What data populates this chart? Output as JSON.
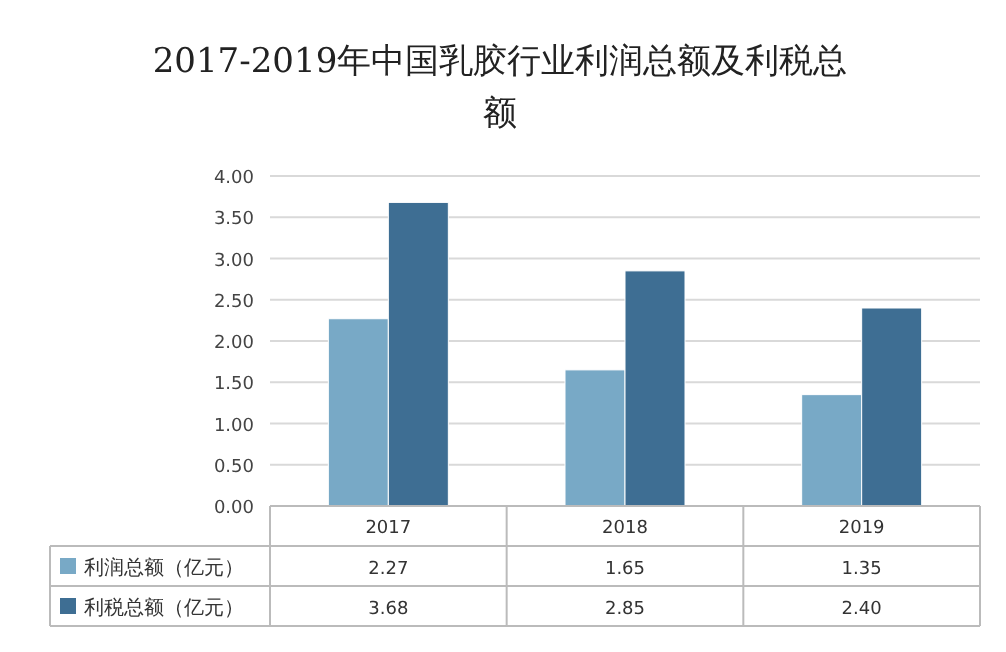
{
  "chart_data": {
    "type": "bar",
    "title": "2017-2019年中国乳胶行业利润总额及利税总额",
    "categories": [
      "2017",
      "2018",
      "2019"
    ],
    "series": [
      {
        "name": "利润总额（亿元）",
        "color": "#78a9c6",
        "values": [
          2.27,
          1.65,
          1.35
        ],
        "value_labels": [
          "2.27",
          "1.65",
          "1.35"
        ]
      },
      {
        "name": "利税总额（亿元）",
        "color": "#3e6e93",
        "values": [
          3.68,
          2.85,
          2.4
        ],
        "value_labels": [
          "3.68",
          "2.85",
          "2.40"
        ]
      }
    ],
    "ylim": [
      0,
      4
    ],
    "yticks": [
      {
        "value": 0,
        "label": "0.00"
      },
      {
        "value": 0.5,
        "label": "0.50"
      },
      {
        "value": 1,
        "label": "1.00"
      },
      {
        "value": 1.5,
        "label": "1.50"
      },
      {
        "value": 2,
        "label": "2.00"
      },
      {
        "value": 2.5,
        "label": "2.50"
      },
      {
        "value": 3,
        "label": "3.00"
      },
      {
        "value": 3.5,
        "label": "3.50"
      },
      {
        "value": 4,
        "label": "4.00"
      }
    ],
    "grid": "y",
    "legend": "bottom"
  }
}
